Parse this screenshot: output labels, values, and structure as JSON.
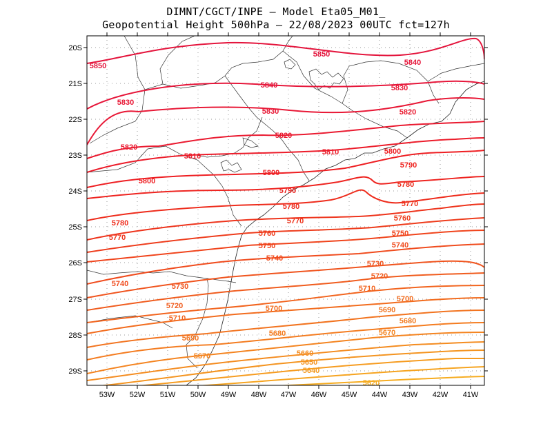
{
  "header": {
    "line1": "DIMNT/CGCT/INPE  –   Model Eta05_M01_",
    "line2": "Geopotential Height 500hPa  –   22/08/2023 00UTC fct=127h"
  },
  "axes": {
    "lat_labels": [
      "20S",
      "21S",
      "22S",
      "23S",
      "24S",
      "25S",
      "26S",
      "27S",
      "28S",
      "29S"
    ],
    "lon_labels": [
      "53W",
      "52W",
      "51W",
      "50W",
      "49W",
      "48W",
      "47W",
      "46W",
      "45W",
      "44W",
      "43W",
      "42W",
      "41W"
    ]
  },
  "colors": {
    "c5850": "#e4143c",
    "c5840": "#e6163a",
    "c5830": "#e81836",
    "c5820": "#ea1a30",
    "c5810": "#ec1c2a",
    "c5800": "#ee1e22",
    "c5790": "#ee2420",
    "c5780": "#ee2c1c",
    "c5770": "#ee341c",
    "c5760": "#ee3c1c",
    "c5750": "#f0441c",
    "c5740": "#f04c1e",
    "c5730": "#f0541e",
    "c5720": "#f05c1e",
    "c5710": "#f2641e",
    "c5700": "#f26c1e",
    "c5690": "#f27420",
    "c5680": "#f47c20",
    "c5670": "#f48420",
    "c5660": "#f48c20",
    "c5650": "#f49420",
    "c5640": "#f69c20",
    "c5630": "#f6a420",
    "c5620": "#f6ac20"
  },
  "contours": [
    {
      "value": 5850,
      "labels": [
        "5850",
        "5850"
      ]
    },
    {
      "value": 5840,
      "labels": [
        "5840",
        "5840"
      ]
    },
    {
      "value": 5830,
      "labels": [
        "5830",
        "5830",
        "5830"
      ]
    },
    {
      "value": 5820,
      "labels": [
        "5820",
        "5820",
        "5820"
      ]
    },
    {
      "value": 5810,
      "labels": [
        "5810",
        "5810"
      ]
    },
    {
      "value": 5800,
      "labels": [
        "5800",
        "5800",
        "5800"
      ]
    },
    {
      "value": 5790,
      "labels": [
        "5790",
        "5790"
      ]
    },
    {
      "value": 5780,
      "labels": [
        "5780",
        "5780",
        "5780"
      ]
    },
    {
      "value": 5770,
      "labels": [
        "5770",
        "5770",
        "5770"
      ]
    },
    {
      "value": 5760,
      "labels": [
        "5760",
        "5760"
      ]
    },
    {
      "value": 5750,
      "labels": [
        "5750",
        "5750"
      ]
    },
    {
      "value": 5740,
      "labels": [
        "5740",
        "5740",
        "5740"
      ]
    },
    {
      "value": 5730,
      "labels": [
        "5730",
        "5730"
      ]
    },
    {
      "value": 5720,
      "labels": [
        "5720",
        "5720"
      ]
    },
    {
      "value": 5710,
      "labels": [
        "5710",
        "5710"
      ]
    },
    {
      "value": 5700,
      "labels": [
        "5700",
        "5700"
      ]
    },
    {
      "value": 5690,
      "labels": [
        "5690",
        "5690"
      ]
    },
    {
      "value": 5680,
      "labels": [
        "5680",
        "5680"
      ]
    },
    {
      "value": 5670,
      "labels": [
        "5670",
        "5670"
      ]
    },
    {
      "value": 5660,
      "labels": [
        "5660"
      ]
    },
    {
      "value": 5650,
      "labels": [
        "5650"
      ]
    },
    {
      "value": 5640,
      "labels": [
        "5640"
      ]
    },
    {
      "value": 5620,
      "labels": [
        "5620"
      ]
    }
  ]
}
